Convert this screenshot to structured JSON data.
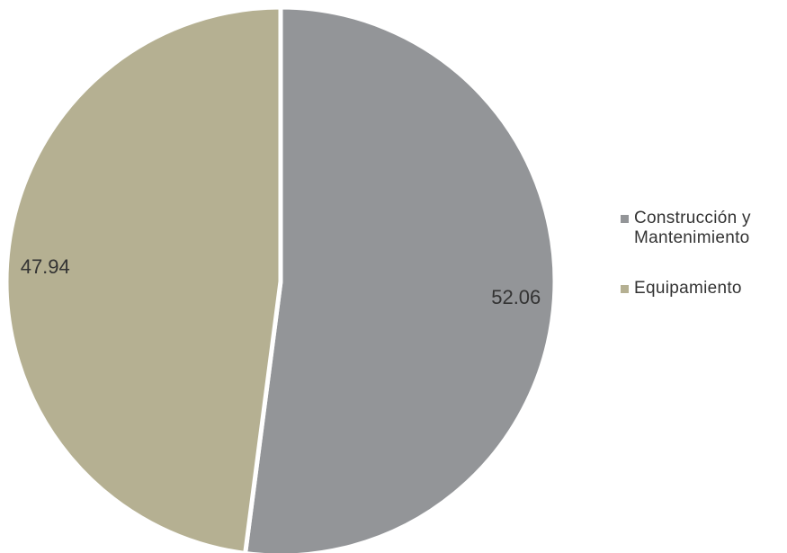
{
  "chart_data": {
    "type": "pie",
    "title": "",
    "slices": [
      {
        "label": "Construcción y Mantenimiento",
        "value": 52.06,
        "value_label": "52.06",
        "color": "#939598"
      },
      {
        "label": "Equipamiento",
        "value": 47.94,
        "value_label": "47.94",
        "color": "#b5b092"
      }
    ],
    "legend_position": "right",
    "start_angle": "12 o'clock",
    "direction": "clockwise"
  }
}
